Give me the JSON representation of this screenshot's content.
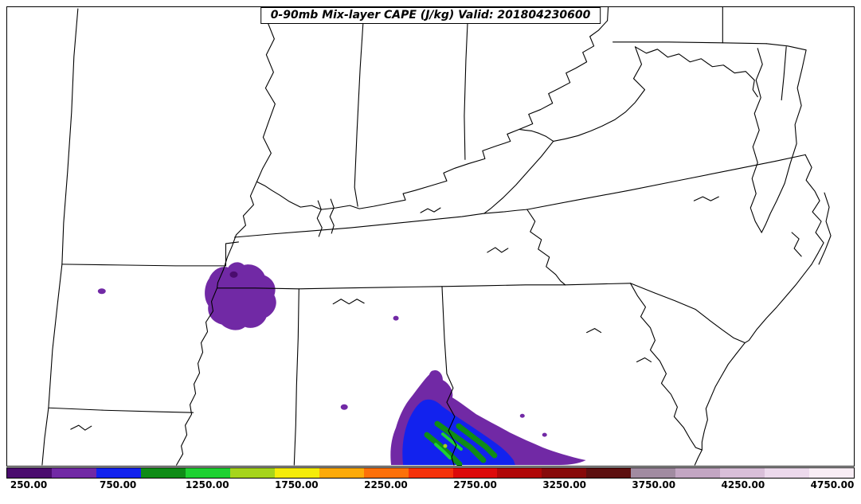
{
  "figure": {
    "title": "0-90mb Mix-layer CAPE (J/kg) Valid: 201804230600"
  },
  "chart_data": {
    "type": "heatmap",
    "title": "0-90mb Mix-layer CAPE (J/kg) Valid: 201804230600",
    "parameter": "0-90mb Mix-layer CAPE",
    "units": "J/kg",
    "valid_time": "201804230600",
    "geography": "Southeastern United States with state boundaries, rivers and Atlantic coastline",
    "colorbar": {
      "orientation": "horizontal",
      "position": "bottom",
      "range": [
        250,
        4750
      ],
      "contour_interval": 250,
      "tick_values": [
        250,
        750,
        1250,
        1750,
        2250,
        2750,
        3250,
        3750,
        4250,
        4750
      ],
      "tick_labels": [
        "250.00",
        "750.00",
        "1250.00",
        "1750.00",
        "2250.00",
        "2750.00",
        "3250.00",
        "3750.00",
        "4250.00",
        "4750.00"
      ],
      "colors": [
        "#4a0c6e",
        "#7129a5",
        "#1222ee",
        "#0f8c17",
        "#1ed131",
        "#a6d41c",
        "#f5ec0a",
        "#fcaa0a",
        "#fc700a",
        "#f5320a",
        "#dd0a0a",
        "#b00707",
        "#870a0a",
        "#5c1010",
        "#a18ba1",
        "#c3a6c3",
        "#d9bfd9",
        "#ecd9ec",
        "#f8edf5"
      ]
    },
    "filled_regions": [
      {
        "area": "northeast Arkansas / Missouri bootheel along the Mississippi River",
        "cape_values": "250-750 J/kg (purple)"
      },
      {
        "area": "central Georgia into east-central Alabama",
        "cape_values": "250-1500 J/kg; purple rim, blue interior, green maxima ~1000-1500 J/kg"
      },
      {
        "area": "scattered small specks in central Arkansas, northern and central Alabama",
        "cape_values": "~250-750 J/kg"
      }
    ]
  }
}
